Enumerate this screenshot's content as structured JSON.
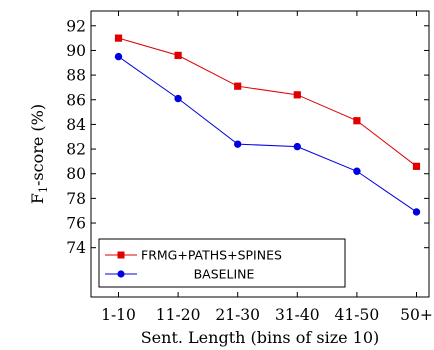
{
  "chart_data": {
    "type": "line",
    "categories": [
      "1-10",
      "11-20",
      "21-30",
      "31-40",
      "41-50",
      "50+"
    ],
    "series": [
      {
        "name": "FRMG+PATHS+SPINES",
        "values": [
          91.0,
          89.6,
          87.1,
          86.4,
          84.3,
          80.6
        ],
        "color": "#e00000",
        "marker": "square"
      },
      {
        "name": "BASELINE",
        "values": [
          89.5,
          86.1,
          82.4,
          82.2,
          80.2,
          76.9
        ],
        "color": "#0000e0",
        "marker": "circle"
      }
    ],
    "yticks": [
      "74",
      "76",
      "78",
      "80",
      "82",
      "84",
      "86",
      "88",
      "90",
      "92"
    ],
    "ylim": [
      70,
      93.2
    ],
    "xlabel": "Sent. Length (bins of size 10)",
    "ylabel_prefix": "F",
    "ylabel_sub": "1",
    "ylabel_suffix": "-score (%)",
    "legend_position": "lower-left",
    "grid": false
  }
}
